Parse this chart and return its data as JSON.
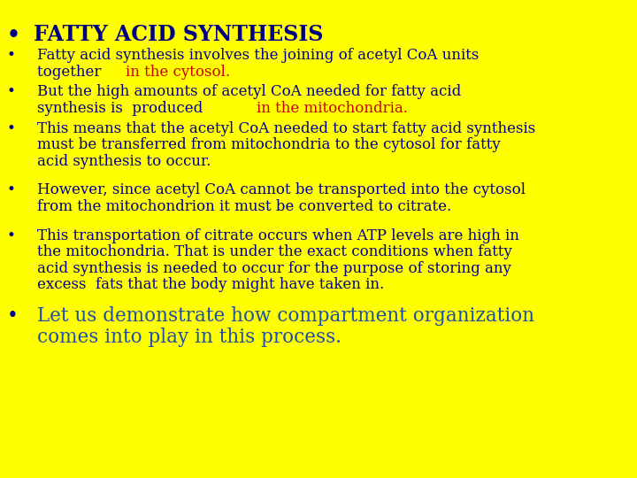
{
  "background_color": "#FFFF00",
  "title_color": "#000080",
  "bullet_color": "#000080",
  "red_color": "#CC0000",
  "navy_color": "#000080",
  "last_bullet_color": "#1E4FA0",
  "title_fontsize": 17,
  "body_fontsize": 12,
  "last_fontsize": 15.5,
  "bullets": [
    {
      "lines": [
        [
          {
            "text": "Fatty acid synthesis involves the joining of acetyl CoA units",
            "color": "#000080"
          },
          {
            "newline": true
          },
          {
            "text": "together ",
            "color": "#000080"
          },
          {
            "text": "in the cytosol.",
            "color": "#CC0000"
          }
        ]
      ]
    },
    {
      "lines": [
        [
          {
            "text": "But the high amounts of acetyl CoA needed for fatty acid",
            "color": "#000080"
          },
          {
            "newline": true
          },
          {
            "text": "synthesis is  produced ",
            "color": "#000080"
          },
          {
            "text": "in the mitochondria.",
            "color": "#CC0000"
          }
        ]
      ]
    },
    {
      "lines": [
        [
          {
            "text": "This means that the acetyl CoA needed to start fatty acid synthesis",
            "color": "#000080"
          },
          {
            "newline": true
          },
          {
            "text": "must be transferred from mitochondria to the cytosol for fatty",
            "color": "#000080"
          },
          {
            "newline": true
          },
          {
            "text": "acid synthesis to occur.",
            "color": "#000080"
          }
        ]
      ]
    },
    {
      "lines": [
        [
          {
            "text": "However, since acetyl CoA cannot be transported into the cytosol",
            "color": "#000080"
          },
          {
            "newline": true
          },
          {
            "text": "from the mitochondrion it must be converted to citrate.",
            "color": "#000080"
          }
        ]
      ]
    },
    {
      "lines": [
        [
          {
            "text": "This transportation of citrate occurs when ATP levels are high in",
            "color": "#000080"
          },
          {
            "newline": true
          },
          {
            "text": "the mitochondria. That is under the exact conditions when fatty",
            "color": "#000080"
          },
          {
            "newline": true
          },
          {
            "text": "acid synthesis is needed to occur for the purpose of storing any",
            "color": "#000080"
          },
          {
            "newline": true
          },
          {
            "text": "excess  fats that the body might have taken in.",
            "color": "#000080"
          }
        ]
      ]
    },
    {
      "lines": [
        [
          {
            "text": "Let us demonstrate how compartment organization",
            "color": "#1E4FA0"
          },
          {
            "newline": true
          },
          {
            "text": "comes into play in this process.",
            "color": "#1E4FA0"
          }
        ]
      ],
      "large": true
    }
  ]
}
